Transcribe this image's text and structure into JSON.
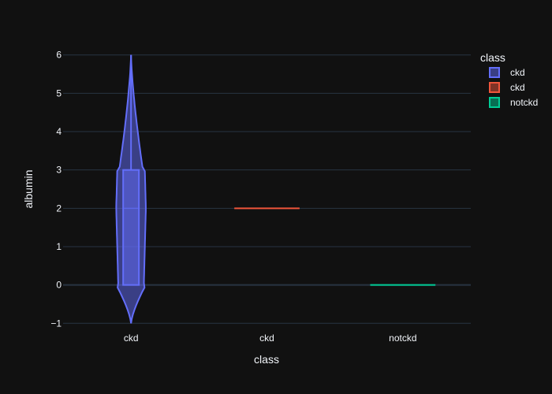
{
  "chart_data": {
    "type": "violin",
    "xlabel": "class",
    "ylabel": "albumin",
    "categories": [
      "ckd",
      "ckd",
      "notckd"
    ],
    "ylim": [
      -1.2,
      6.2
    ],
    "yticks": [
      -1,
      0,
      1,
      2,
      3,
      4,
      5,
      6
    ],
    "grid": true,
    "legend": {
      "title": "class",
      "placement": "top-right"
    },
    "series": [
      {
        "name": "ckd",
        "category_index": 0,
        "color": "#636efa",
        "min": 0,
        "q1": 0,
        "median": 2,
        "q3": 3,
        "max": 5,
        "kde_range": [
          -1,
          6
        ]
      },
      {
        "name": "ckd",
        "category_index": 1,
        "color": "#ef553b",
        "min": 2,
        "q1": 2,
        "median": 2,
        "q3": 2,
        "max": 2
      },
      {
        "name": "notckd",
        "category_index": 2,
        "color": "#00cc96",
        "min": 0,
        "q1": 0,
        "median": 0,
        "q3": 0,
        "max": 0
      }
    ]
  }
}
